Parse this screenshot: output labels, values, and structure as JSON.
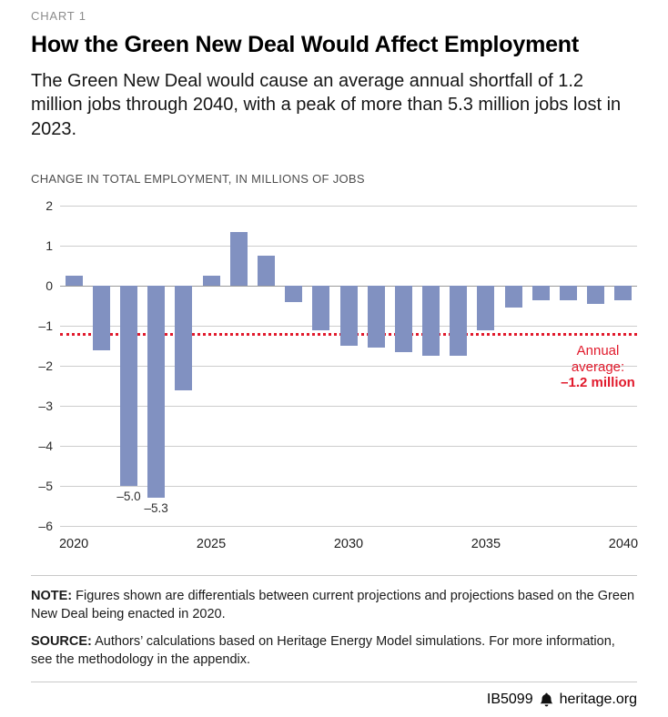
{
  "header": {
    "kicker": "CHART 1",
    "title": "How the Green New Deal Would Affect Employment",
    "subtitle": "The Green New Deal would cause an average annual shortfall of 1.2 million jobs through 2040, with a peak of more than 5.3 million jobs lost in 2023."
  },
  "chart_data": {
    "type": "bar",
    "title": "CHANGE IN TOTAL EMPLOYMENT, IN MILLIONS OF JOBS",
    "x": [
      2020,
      2021,
      2022,
      2023,
      2024,
      2025,
      2026,
      2027,
      2028,
      2029,
      2030,
      2031,
      2032,
      2033,
      2034,
      2035,
      2036,
      2037,
      2038,
      2039,
      2040
    ],
    "values": [
      0.25,
      -1.6,
      -5.0,
      -5.3,
      -2.6,
      0.25,
      1.35,
      0.75,
      -0.4,
      -1.1,
      -1.5,
      -1.55,
      -1.65,
      -1.75,
      -1.75,
      -1.1,
      -0.55,
      -0.35,
      -0.35,
      -0.45,
      -0.35
    ],
    "data_labels": {
      "2022": "–5.0",
      "2023": "–5.3"
    },
    "ylim": [
      -6,
      2
    ],
    "yticks": [
      2,
      1,
      0,
      -1,
      -2,
      -3,
      -4,
      -5,
      -6
    ],
    "ytick_labels": [
      "2",
      "1",
      "0",
      "–1",
      "–2",
      "–3",
      "–4",
      "–5",
      "–6"
    ],
    "xticks": [
      2020,
      2025,
      2030,
      2035,
      2040
    ],
    "grid": true,
    "bar_color": "#8191c1",
    "reference_line": {
      "value": -1.2,
      "color": "#e11a2c",
      "style": "dotted",
      "label": "Annual average:",
      "label_value": "–1.2 million"
    }
  },
  "notes": {
    "note_label": "NOTE:",
    "note_text": "Figures shown are differentials between current projections and projections based on the Green New Deal being enacted in 2020.",
    "source_label": "SOURCE:",
    "source_text": "Authors’ calculations based on Heritage Energy Model simulations. For more information, see the methodology in the appendix."
  },
  "footer": {
    "id": "IB5099",
    "site": "heritage.org"
  }
}
